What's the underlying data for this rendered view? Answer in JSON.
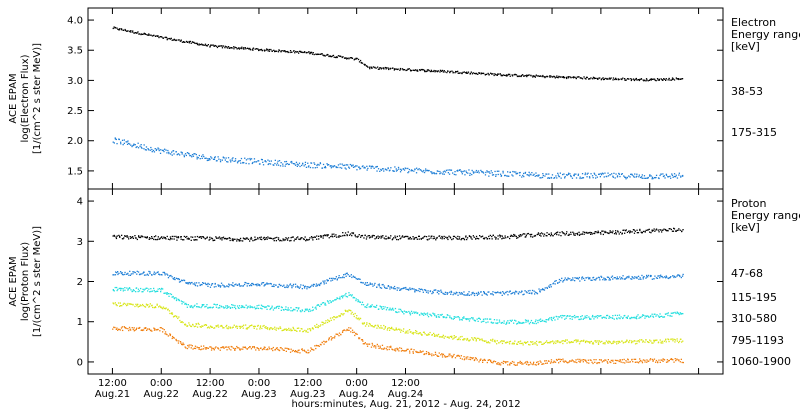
{
  "chart_data": [
    {
      "type": "scatter",
      "panel": "electron",
      "ylabel_lines": [
        "ACE EPAM",
        "log(Electron Flux)",
        "[1/(cm^2 s ster MeV)]"
      ],
      "ylim": [
        1.2,
        4.2
      ],
      "yticks": [
        1.5,
        2.0,
        2.5,
        3.0,
        3.5,
        4.0
      ],
      "ytick_labels": [
        "1.5",
        "2.0",
        "2.5",
        "3.0",
        "3.5",
        "4.0"
      ],
      "legend_title": [
        "Electron",
        "Energy range",
        "[keV]"
      ],
      "grid": false,
      "series": [
        {
          "name": "38-53",
          "color": "#000000",
          "x": [
            0,
            12,
            24,
            36,
            48,
            60,
            63,
            72,
            84,
            96,
            108,
            120,
            132,
            140
          ],
          "y": [
            3.88,
            3.72,
            3.58,
            3.52,
            3.47,
            3.36,
            3.22,
            3.19,
            3.15,
            3.1,
            3.07,
            3.04,
            3.02,
            3.04
          ]
        },
        {
          "name": "175-315",
          "color": "#1f7fd6",
          "x": [
            0,
            12,
            24,
            36,
            48,
            60,
            72,
            84,
            96,
            108,
            120,
            132,
            140
          ],
          "y": [
            2.02,
            1.84,
            1.72,
            1.66,
            1.61,
            1.57,
            1.52,
            1.49,
            1.46,
            1.43,
            1.43,
            1.42,
            1.43
          ]
        }
      ]
    },
    {
      "type": "scatter",
      "panel": "proton",
      "ylabel_lines": [
        "ACE EPAM",
        "log(Proton Flux)",
        "[1/(cm^2 s ster MeV)]"
      ],
      "ylim": [
        -0.3,
        4.3
      ],
      "yticks": [
        0,
        1,
        2,
        3,
        4
      ],
      "ytick_labels": [
        "0",
        "1",
        "2",
        "3",
        "4"
      ],
      "legend_title": [
        "Proton",
        "Energy range",
        "[keV]"
      ],
      "grid": false,
      "series": [
        {
          "name": "47-68",
          "color": "#000000",
          "x": [
            0,
            12,
            24,
            36,
            48,
            58,
            62,
            72,
            84,
            96,
            108,
            120,
            132,
            140
          ],
          "y": [
            3.12,
            3.1,
            3.08,
            3.07,
            3.08,
            3.2,
            3.12,
            3.1,
            3.1,
            3.12,
            3.2,
            3.22,
            3.28,
            3.3
          ]
        },
        {
          "name": "115-195",
          "color": "#1f7fd6",
          "x": [
            0,
            12,
            18,
            24,
            36,
            48,
            58,
            62,
            72,
            84,
            96,
            104,
            110,
            120,
            132,
            140
          ],
          "y": [
            2.22,
            2.22,
            1.98,
            1.92,
            1.95,
            1.88,
            2.2,
            1.95,
            1.82,
            1.72,
            1.72,
            1.75,
            2.05,
            2.1,
            2.12,
            2.15
          ]
        },
        {
          "name": "310-580",
          "color": "#22dede",
          "x": [
            0,
            12,
            18,
            24,
            36,
            48,
            58,
            62,
            72,
            84,
            96,
            104,
            110,
            120,
            132,
            140
          ],
          "y": [
            1.82,
            1.8,
            1.42,
            1.4,
            1.38,
            1.3,
            1.7,
            1.42,
            1.25,
            1.12,
            1.0,
            1.02,
            1.12,
            1.12,
            1.15,
            1.22
          ]
        },
        {
          "name": "795-1193",
          "color": "#d8e51a",
          "x": [
            0,
            12,
            18,
            24,
            36,
            48,
            58,
            62,
            72,
            84,
            96,
            104,
            110,
            120,
            132,
            140
          ],
          "y": [
            1.45,
            1.4,
            0.95,
            0.9,
            0.88,
            0.8,
            1.3,
            0.95,
            0.78,
            0.62,
            0.5,
            0.48,
            0.52,
            0.5,
            0.52,
            0.55
          ]
        },
        {
          "name": "1060-1900",
          "color": "#f07f10",
          "x": [
            0,
            12,
            18,
            24,
            36,
            48,
            58,
            62,
            72,
            84,
            96,
            104,
            110,
            120,
            132,
            140
          ],
          "y": [
            0.85,
            0.82,
            0.4,
            0.35,
            0.35,
            0.28,
            0.85,
            0.45,
            0.3,
            0.15,
            -0.02,
            -0.02,
            0.05,
            0.02,
            0.05,
            0.05
          ]
        }
      ]
    }
  ],
  "x_axis": {
    "range_hours": [
      -6,
      150
    ],
    "tick_hours": [
      0,
      12,
      24,
      36,
      48,
      60,
      72,
      84,
      96,
      108,
      120,
      132,
      144
    ],
    "labeled_ticks": [
      {
        "hour": 0,
        "time": "12:00",
        "date": "Aug.21"
      },
      {
        "hour": 12,
        "time": "0:00",
        "date": "Aug.22"
      },
      {
        "hour": 24,
        "time": "12:00",
        "date": "Aug.22"
      },
      {
        "hour": 36,
        "time": "0:00",
        "date": "Aug.23"
      },
      {
        "hour": 48,
        "time": "12:00",
        "date": "Aug.23"
      },
      {
        "hour": 60,
        "time": "0:00",
        "date": "Aug.24"
      },
      {
        "hour": 72,
        "time": "12:00",
        "date": "Aug.24"
      }
    ],
    "xlabel": "hours:minutes, Aug. 21, 2012 - Aug. 24, 2012"
  }
}
